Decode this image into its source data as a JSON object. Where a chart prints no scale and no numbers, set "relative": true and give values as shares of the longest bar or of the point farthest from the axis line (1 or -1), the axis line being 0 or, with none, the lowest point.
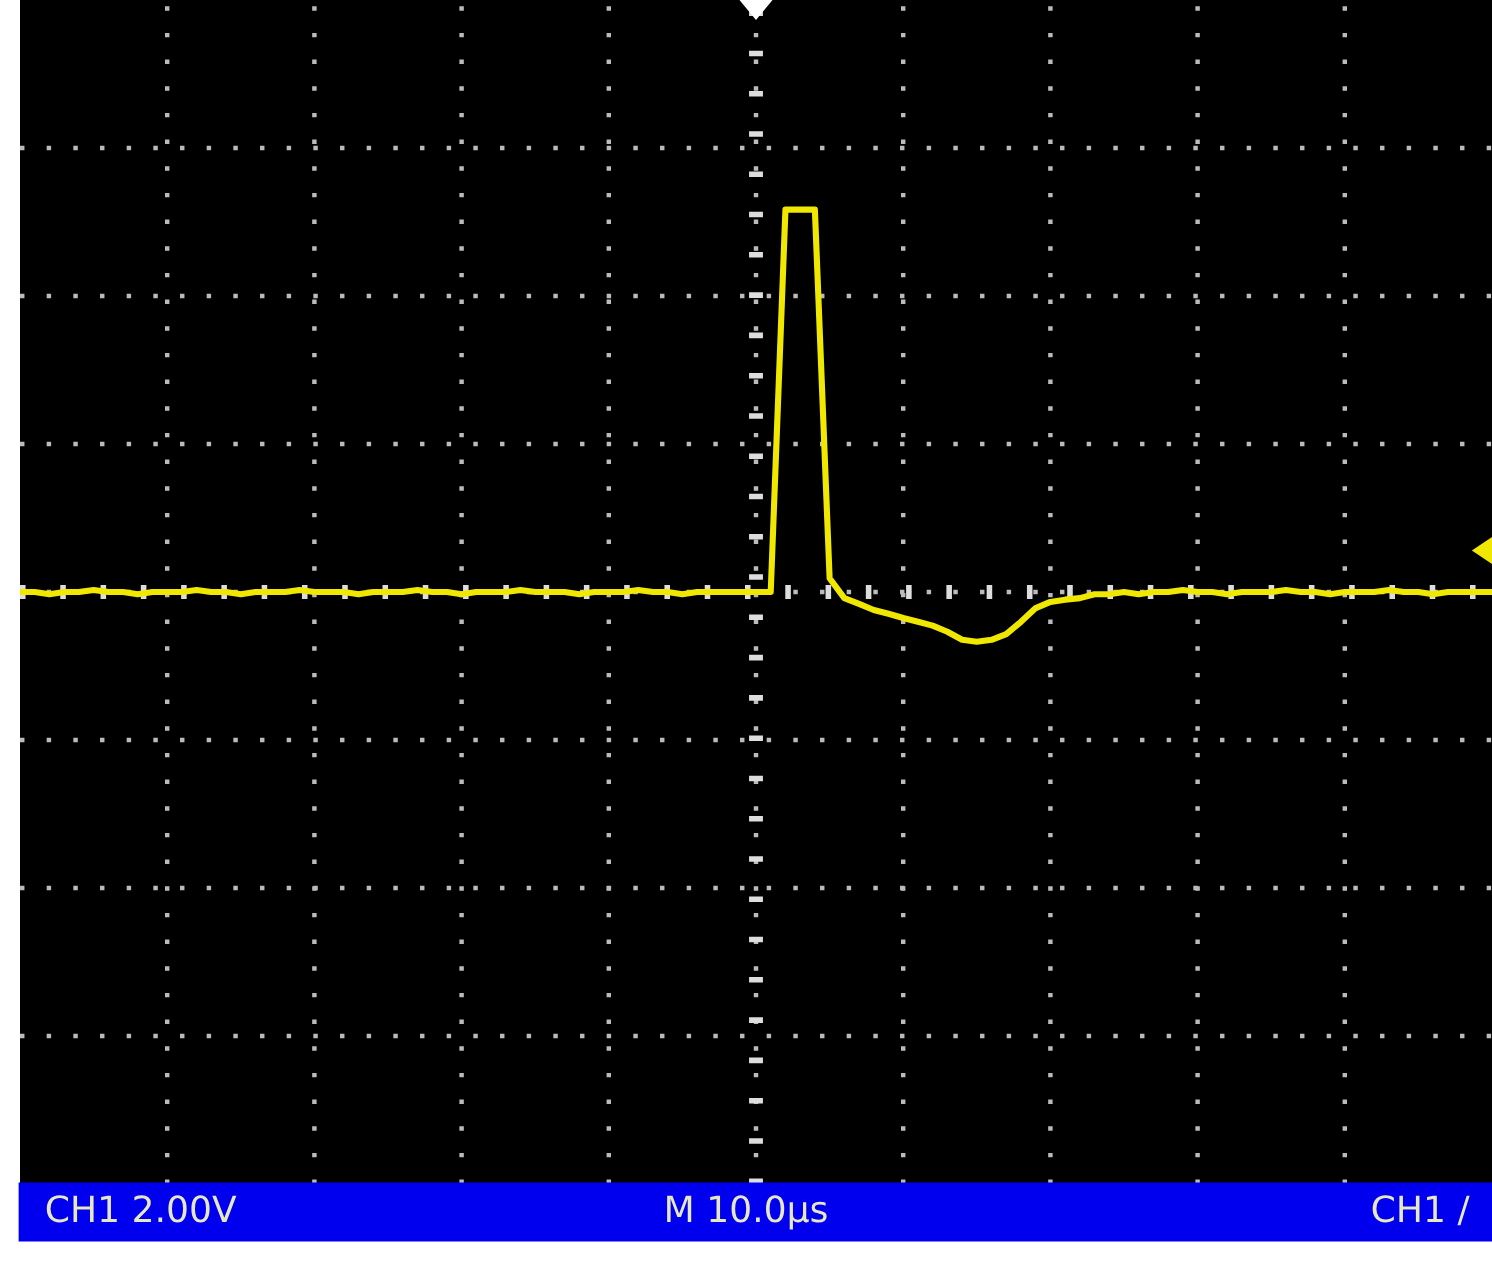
{
  "chart_data": {
    "type": "line",
    "relative": true,
    "grid": true,
    "marker": "none",
    "line_style": "solid",
    "categories": [
      null,
      null,
      null,
      null,
      null,
      null,
      null,
      null,
      null,
      null,
      null,
      null,
      null,
      null,
      null,
      null,
      null,
      null,
      null,
      null,
      null,
      null,
      null,
      null,
      null,
      null,
      null,
      null,
      null,
      null,
      null,
      null,
      null,
      null,
      null,
      null,
      null,
      null,
      null,
      null,
      null,
      null,
      null,
      null,
      null,
      null,
      null,
      null,
      null,
      null,
      null,
      null,
      null,
      null,
      null,
      null,
      null,
      null,
      null,
      null,
      null,
      null,
      null,
      null,
      null,
      null,
      null,
      null,
      null,
      null,
      null,
      null,
      null,
      null,
      null,
      null,
      null,
      null,
      null,
      null,
      null,
      null,
      null,
      null,
      null,
      null,
      null,
      null,
      null,
      null,
      null,
      null,
      null,
      null,
      null,
      null,
      null,
      null,
      null,
      null,
      null
    ],
    "series": [
      {
        "color": "#f0e800",
        "values": [
          0,
          0,
          -0.006,
          0,
          0,
          0.005,
          0,
          0,
          -0.006,
          0,
          0,
          0,
          0.005,
          0,
          0,
          -0.006,
          0,
          0,
          0,
          0.005,
          0,
          0,
          0,
          -0.006,
          0,
          0,
          0,
          0.005,
          0,
          0,
          -0.006,
          0,
          0,
          0,
          0.005,
          0,
          0,
          0,
          -0.006,
          0,
          0,
          0,
          0.005,
          0,
          0,
          -0.006,
          0,
          0,
          0,
          0,
          0,
          0,
          1.0,
          1.0,
          1.0,
          0.036,
          -0.016,
          -0.031,
          -0.047,
          -0.057,
          -0.068,
          -0.078,
          -0.088,
          -0.104,
          -0.125,
          -0.13,
          -0.125,
          -0.11,
          -0.078,
          -0.042,
          -0.026,
          -0.02,
          -0.016,
          -0.006,
          -0.006,
          0,
          -0.006,
          0,
          0,
          0.005,
          0,
          0,
          -0.006,
          0,
          0,
          0,
          0.005,
          0,
          0,
          -0.006,
          0,
          0,
          0,
          0.005,
          0,
          0,
          -0.006,
          0,
          0,
          0,
          0
        ]
      }
    ],
    "ref_lines": [
      {
        "axis": "y",
        "value": 0,
        "color": "#dddddd",
        "line_style": "dotted"
      }
    ],
    "annotations": [
      "CH1 2.00V",
      "M 10.0µs",
      "CH1 /"
    ]
  }
}
